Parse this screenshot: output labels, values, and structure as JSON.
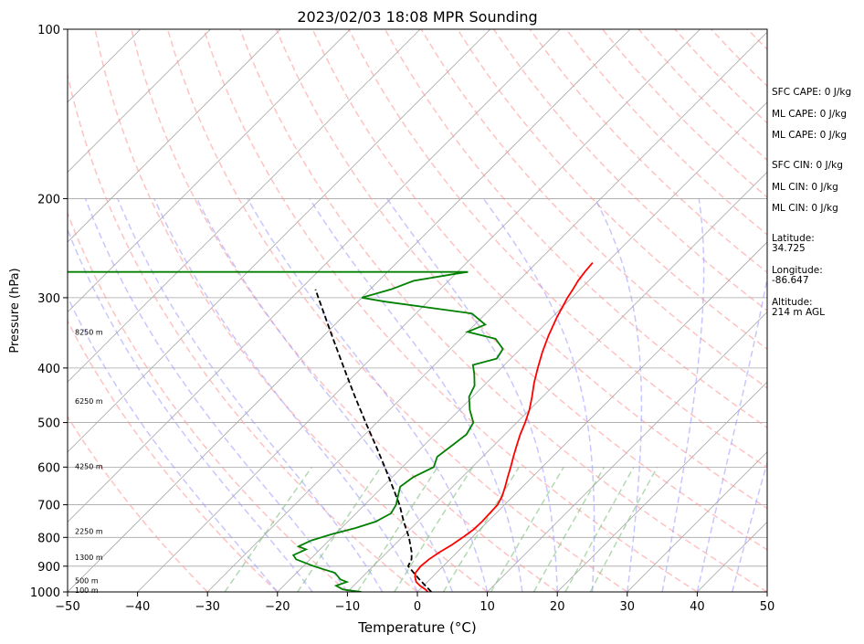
{
  "chart_data": {
    "type": "skew-t",
    "title": "2023/02/03 18:08 MPR Sounding",
    "xlabel": "Temperature (°C)",
    "ylabel": "Pressure (hPa)",
    "xlim": [
      -50,
      50
    ],
    "ylim": [
      1000,
      100
    ],
    "y_scale": "log",
    "x_ticks": [
      -50,
      -40,
      -30,
      -20,
      -10,
      0,
      10,
      20,
      30,
      40,
      50
    ],
    "x_tick_labels": [
      "−50",
      "−40",
      "−30",
      "−20",
      "−10",
      "0",
      "10",
      "20",
      "30",
      "40",
      "50"
    ],
    "y_ticks": [
      1000,
      900,
      800,
      700,
      600,
      500,
      400,
      300,
      200,
      100
    ],
    "y_tick_labels": [
      "1000",
      "900",
      "800",
      "700",
      "600",
      "500",
      "400",
      "300",
      "200",
      "100"
    ],
    "isobar_grid": [
      900,
      800,
      700,
      600,
      500,
      400,
      300,
      200
    ],
    "skew_degrees": 45,
    "colors": {
      "temperature": "#ff0000",
      "dewpoint": "#008000",
      "parcel": "#000000",
      "isotherms": "#a6a6a6",
      "dry_adiabats": "#ff9999",
      "moist_adiabats": "#9999ff",
      "mixing_ratio": "#7fbf7f"
    },
    "temperature": [
      [
        1000,
        1.5
      ],
      [
        990,
        0.8
      ],
      [
        975,
        -0.5
      ],
      [
        960,
        -1.6
      ],
      [
        940,
        -2.5
      ],
      [
        925,
        -3.0
      ],
      [
        900,
        -3.2
      ],
      [
        875,
        -3.0
      ],
      [
        850,
        -2.5
      ],
      [
        825,
        -1.8
      ],
      [
        800,
        -1.3
      ],
      [
        775,
        -0.9
      ],
      [
        750,
        -0.8
      ],
      [
        725,
        -0.9
      ],
      [
        700,
        -1.0
      ],
      [
        675,
        -1.6
      ],
      [
        650,
        -2.5
      ],
      [
        625,
        -3.5
      ],
      [
        600,
        -4.5
      ],
      [
        575,
        -5.6
      ],
      [
        550,
        -6.7
      ],
      [
        525,
        -7.8
      ],
      [
        500,
        -8.8
      ],
      [
        475,
        -10.0
      ],
      [
        450,
        -11.5
      ],
      [
        425,
        -13.2
      ],
      [
        400,
        -14.8
      ],
      [
        375,
        -16.4
      ],
      [
        350,
        -17.9
      ],
      [
        325,
        -19.3
      ],
      [
        300,
        -20.6
      ],
      [
        290,
        -21.0
      ],
      [
        280,
        -21.5
      ],
      [
        270,
        -21.8
      ],
      [
        260,
        -22.0
      ]
    ],
    "dewpoint": [
      [
        1000,
        -8.0
      ],
      [
        990,
        -11.0
      ],
      [
        975,
        -12.5
      ],
      [
        960,
        -11.5
      ],
      [
        950,
        -12.8
      ],
      [
        925,
        -14.5
      ],
      [
        900,
        -18.5
      ],
      [
        875,
        -22.0
      ],
      [
        860,
        -23.0
      ],
      [
        840,
        -22.0
      ],
      [
        830,
        -23.5
      ],
      [
        810,
        -22.5
      ],
      [
        790,
        -20.5
      ],
      [
        770,
        -18.0
      ],
      [
        750,
        -16.0
      ],
      [
        725,
        -15.0
      ],
      [
        700,
        -15.5
      ],
      [
        675,
        -16.5
      ],
      [
        650,
        -17.5
      ],
      [
        625,
        -17.0
      ],
      [
        600,
        -15.5
      ],
      [
        575,
        -16.5
      ],
      [
        550,
        -16.0
      ],
      [
        525,
        -15.5
      ],
      [
        500,
        -16.2
      ],
      [
        475,
        -18.5
      ],
      [
        450,
        -20.5
      ],
      [
        430,
        -21.3
      ],
      [
        410,
        -23.0
      ],
      [
        395,
        -24.5
      ],
      [
        385,
        -22.0
      ],
      [
        370,
        -22.5
      ],
      [
        355,
        -25.0
      ],
      [
        345,
        -30.0
      ],
      [
        335,
        -28.5
      ],
      [
        320,
        -32.0
      ],
      [
        305,
        -46.0
      ],
      [
        300,
        -50.0
      ],
      [
        290,
        -47.0
      ],
      [
        280,
        -45.0
      ],
      [
        272,
        -40.0
      ],
      [
        270,
        -38.5
      ],
      [
        270,
        -99
      ]
    ],
    "parcel": [
      [
        1000,
        2.0
      ],
      [
        950,
        -1.5
      ],
      [
        900,
        -5.0
      ],
      [
        875,
        -5.5
      ],
      [
        850,
        -6.5
      ],
      [
        800,
        -9.0
      ],
      [
        750,
        -12.0
      ],
      [
        700,
        -15.0
      ],
      [
        650,
        -18.6
      ],
      [
        600,
        -22.5
      ],
      [
        550,
        -26.8
      ],
      [
        500,
        -31.6
      ],
      [
        450,
        -36.8
      ],
      [
        400,
        -42.5
      ],
      [
        350,
        -48.9
      ],
      [
        300,
        -56.2
      ],
      [
        290,
        -57.8
      ]
    ],
    "height_labels": [
      {
        "p": 993,
        "text": "100 m"
      },
      {
        "p": 955,
        "text": "500 m"
      },
      {
        "p": 868,
        "text": "1300 m"
      },
      {
        "p": 780,
        "text": "2250 m"
      },
      {
        "p": 598,
        "text": "4250 m"
      },
      {
        "p": 458,
        "text": "6250 m"
      },
      {
        "p": 345,
        "text": "8250 m"
      }
    ],
    "annotations": [
      "SFC CAPE: 0 J/kg",
      "ML CAPE: 0 J/kg",
      "ML CAPE: 0 J/kg",
      "SFC CIN: 0 J/kg",
      "ML CIN: 0 J/kg",
      "ML CIN: 0 J/kg",
      "Latitude:",
      "34.725",
      "Longitude:",
      "-86.647",
      "Altitude:",
      "214 m AGL"
    ]
  }
}
